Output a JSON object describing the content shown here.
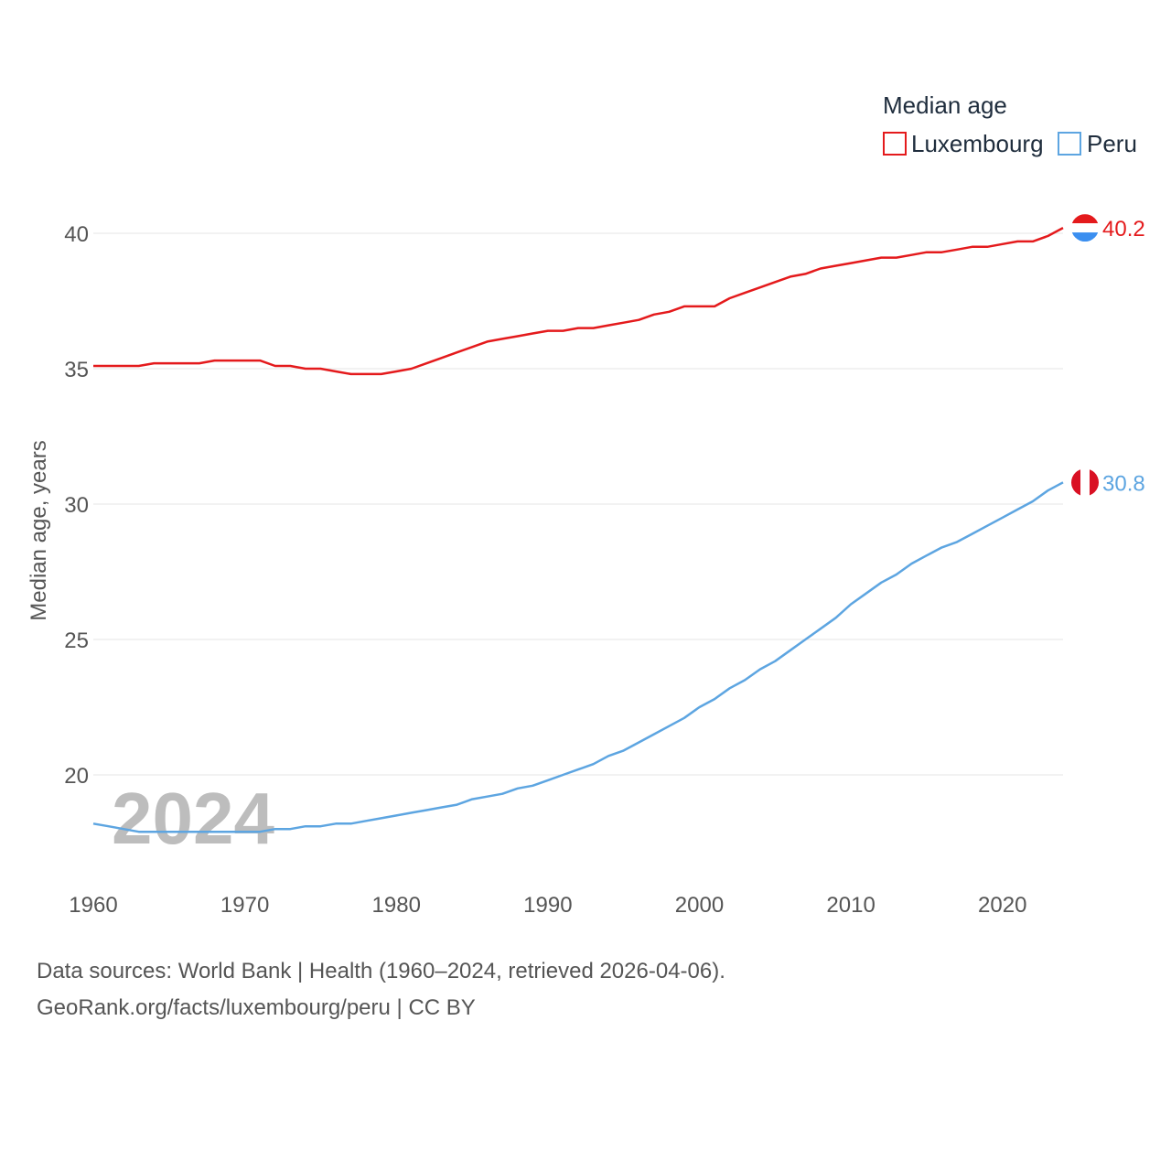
{
  "chart_data": {
    "type": "line",
    "title": "Median age",
    "ylabel": "Median age, years",
    "xlabel": "",
    "xlim": [
      1960,
      2024
    ],
    "ylim": [
      16.5,
      41.5
    ],
    "yticks": [
      20,
      25,
      30,
      35,
      40
    ],
    "xticks": [
      1960,
      1970,
      1980,
      1990,
      2000,
      2010,
      2020
    ],
    "current_year": "2024",
    "legend_position": "top-right",
    "x": [
      1960,
      1961,
      1962,
      1963,
      1964,
      1965,
      1966,
      1967,
      1968,
      1969,
      1970,
      1971,
      1972,
      1973,
      1974,
      1975,
      1976,
      1977,
      1978,
      1979,
      1980,
      1981,
      1982,
      1983,
      1984,
      1985,
      1986,
      1987,
      1988,
      1989,
      1990,
      1991,
      1992,
      1993,
      1994,
      1995,
      1996,
      1997,
      1998,
      1999,
      2000,
      2001,
      2002,
      2003,
      2004,
      2005,
      2006,
      2007,
      2008,
      2009,
      2010,
      2011,
      2012,
      2013,
      2014,
      2015,
      2016,
      2017,
      2018,
      2019,
      2020,
      2021,
      2022,
      2023,
      2024
    ],
    "series": [
      {
        "name": "Luxembourg",
        "color": "#e41a1c",
        "end_label": "40.2",
        "values": [
          35.1,
          35.1,
          35.1,
          35.1,
          35.2,
          35.2,
          35.2,
          35.2,
          35.3,
          35.3,
          35.3,
          35.3,
          35.1,
          35.1,
          35.0,
          35.0,
          34.9,
          34.8,
          34.8,
          34.8,
          34.9,
          35.0,
          35.2,
          35.4,
          35.6,
          35.8,
          36.0,
          36.1,
          36.2,
          36.3,
          36.4,
          36.4,
          36.5,
          36.5,
          36.6,
          36.7,
          36.8,
          37.0,
          37.1,
          37.3,
          37.3,
          37.3,
          37.6,
          37.8,
          38.0,
          38.2,
          38.4,
          38.5,
          38.7,
          38.8,
          38.9,
          39.0,
          39.1,
          39.1,
          39.2,
          39.3,
          39.3,
          39.4,
          39.5,
          39.5,
          39.6,
          39.7,
          39.7,
          39.9,
          40.2
        ]
      },
      {
        "name": "Peru",
        "color": "#5da5e1",
        "end_label": "30.8",
        "values": [
          18.2,
          18.1,
          18.0,
          17.9,
          17.9,
          17.9,
          17.9,
          17.9,
          17.9,
          17.9,
          17.9,
          17.9,
          18.0,
          18.0,
          18.1,
          18.1,
          18.2,
          18.2,
          18.3,
          18.4,
          18.5,
          18.6,
          18.7,
          18.8,
          18.9,
          19.1,
          19.2,
          19.3,
          19.5,
          19.6,
          19.8,
          20.0,
          20.2,
          20.4,
          20.7,
          20.9,
          21.2,
          21.5,
          21.8,
          22.1,
          22.5,
          22.8,
          23.2,
          23.5,
          23.9,
          24.2,
          24.6,
          25.0,
          25.4,
          25.8,
          26.3,
          26.7,
          27.1,
          27.4,
          27.8,
          28.1,
          28.4,
          28.6,
          28.9,
          29.2,
          29.5,
          29.8,
          30.1,
          30.5,
          30.8
        ]
      }
    ]
  },
  "source": {
    "line1": "Data sources: World Bank | Health (1960–2024, retrieved 2026-04-06).",
    "line2": "GeoRank.org/facts/luxembourg/peru | CC BY"
  }
}
